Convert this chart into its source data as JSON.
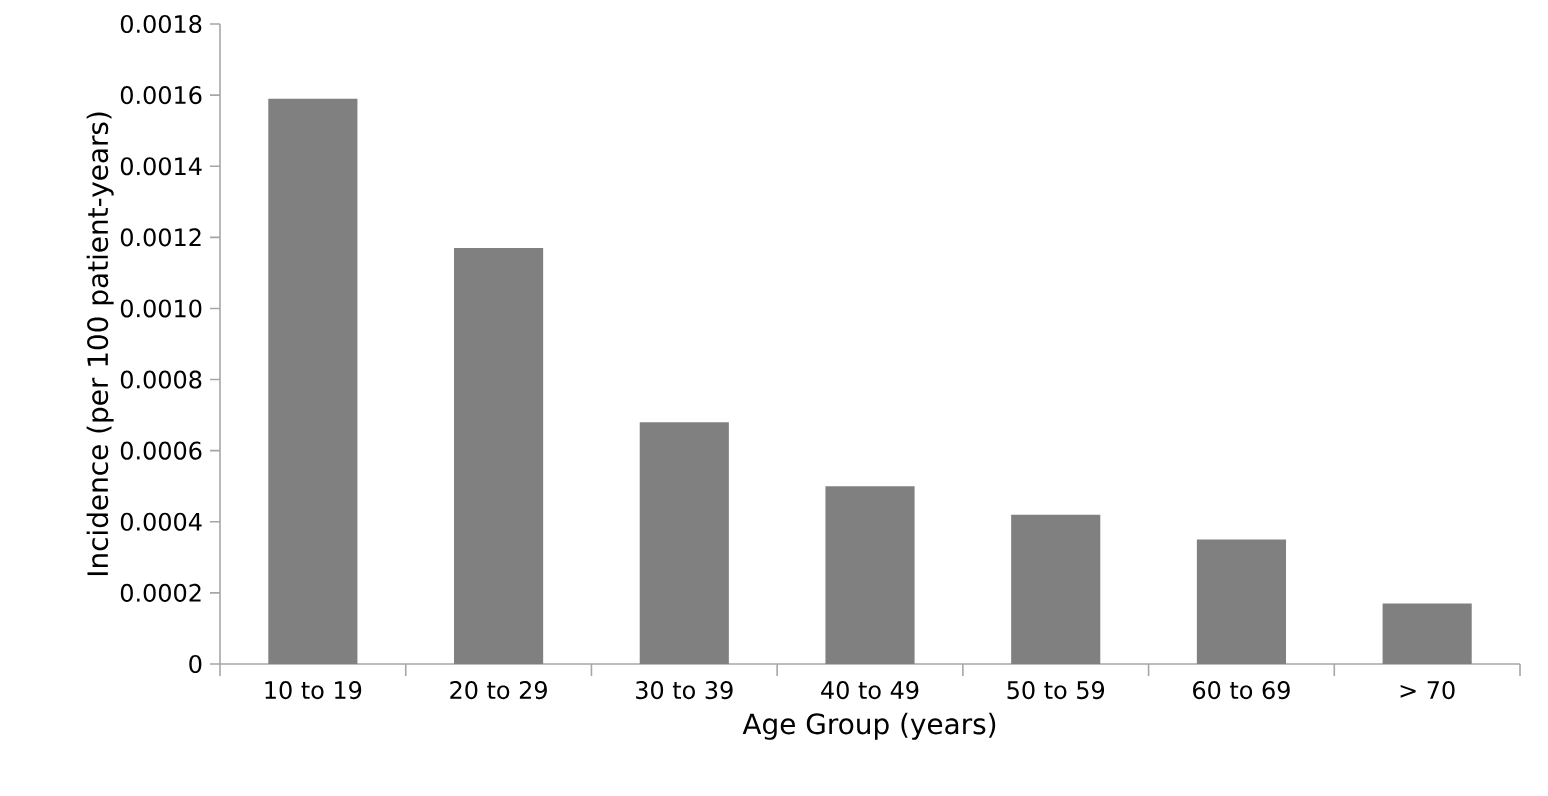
{
  "chart_data": {
    "type": "bar",
    "xlabel": "Age Group (years)",
    "ylabel": "Incidence (per 100 patient-years)",
    "categories": [
      "10 to 19",
      "20 to 29",
      "30 to 39",
      "40 to 49",
      "50 to 59",
      "60 to 69",
      "> 70"
    ],
    "values": [
      0.00159,
      0.00117,
      0.00068,
      0.0005,
      0.00042,
      0.00035,
      0.00017
    ],
    "color": "#808080",
    "ylim": [
      0,
      0.0018
    ],
    "yticks": [
      0,
      0.0002,
      0.0004,
      0.0006,
      0.0008,
      {
        "value": 0.001,
        "label": "0.0010"
      },
      0.0012,
      0.0014,
      0.0016,
      0.0018
    ],
    "grid": false
  }
}
